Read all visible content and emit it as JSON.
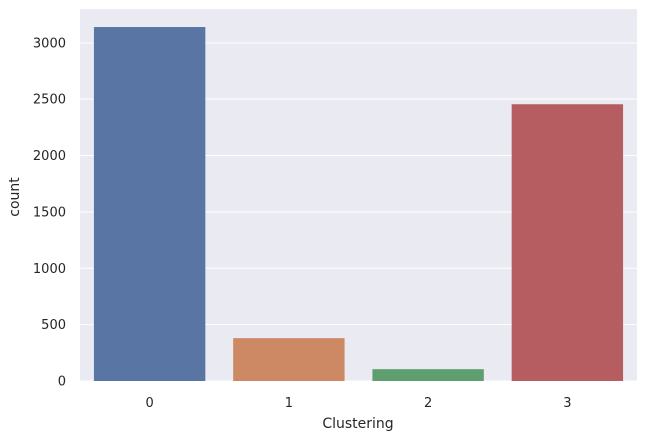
{
  "chart_data": {
    "type": "bar",
    "categories": [
      "0",
      "1",
      "2",
      "3"
    ],
    "values": [
      3140,
      380,
      105,
      2455
    ],
    "title": "",
    "xlabel": "Clustering",
    "ylabel": "count",
    "ylim": [
      0,
      3300
    ],
    "yticks": [
      0,
      500,
      1000,
      1500,
      2000,
      2500,
      3000
    ],
    "ytick_labels": [
      "0",
      "500",
      "1000",
      "1500",
      "2000",
      "2500",
      "3000"
    ],
    "grid": true,
    "colors": [
      "#5875a4",
      "#cc8963",
      "#5f9e6e",
      "#b55d60"
    ],
    "background": "#eaeaf2"
  }
}
